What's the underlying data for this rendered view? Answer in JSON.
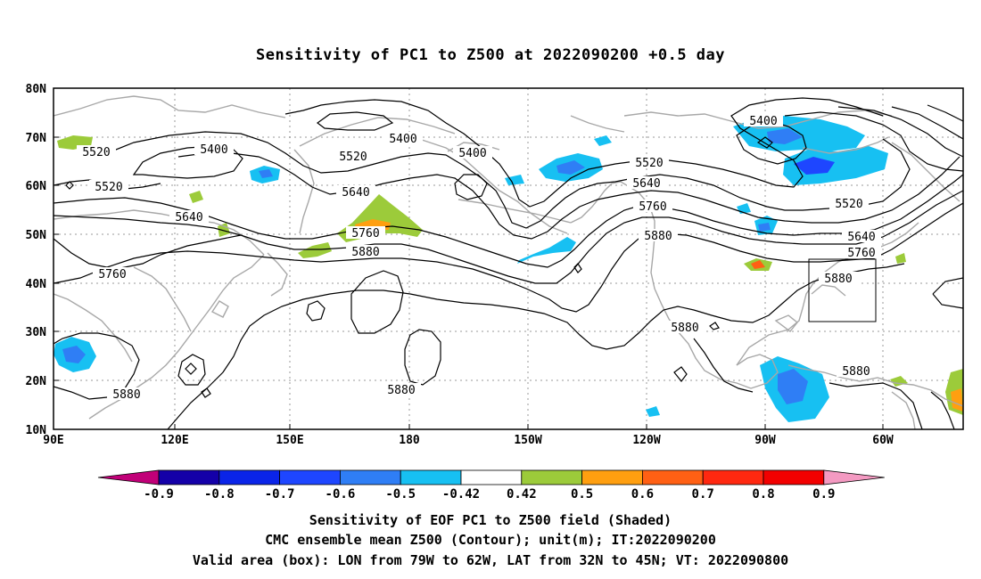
{
  "title": "Sensitivity of PC1 to Z500 at 2022090200 +0.5 day",
  "lat_labels": [
    "80N",
    "70N",
    "60N",
    "50N",
    "40N",
    "30N",
    "20N",
    "10N"
  ],
  "lon_labels": [
    "90E",
    "120E",
    "150E",
    "180",
    "150W",
    "120W",
    "90W",
    "60W"
  ],
  "contour_labels": [
    "5520",
    "5400",
    "5400",
    "5520",
    "5400",
    "5400",
    "5520",
    "5520",
    "5640",
    "5640",
    "5640",
    "5760",
    "5760",
    "5520",
    "5880",
    "5880",
    "5640",
    "5760",
    "5760",
    "5880",
    "5880",
    "5880",
    "5880"
  ],
  "colorbar": {
    "labels": [
      "-0.9",
      "-0.8",
      "-0.7",
      "-0.6",
      "-0.5",
      "-0.42",
      "0.42",
      "0.5",
      "0.6",
      "0.7",
      "0.8",
      "0.9"
    ],
    "colors": [
      "#c10078",
      "#1400a8",
      "#0a24e8",
      "#1e46ff",
      "#2f7ef5",
      "#17c0f2",
      "#ffffff",
      "#9ccb3a",
      "#ff9f10",
      "#ff6014",
      "#ff2810",
      "#f20000",
      "#f49ac2"
    ]
  },
  "captions": [
    "Sensitivity of EOF PC1 to Z500 field (Shaded)",
    "CMC ensemble mean Z500 (Contour); unit(m); IT:2022090200",
    "Valid area (box): LON from 79W to 62W, LAT from 32N to 45N; VT: 2022090800"
  ]
}
